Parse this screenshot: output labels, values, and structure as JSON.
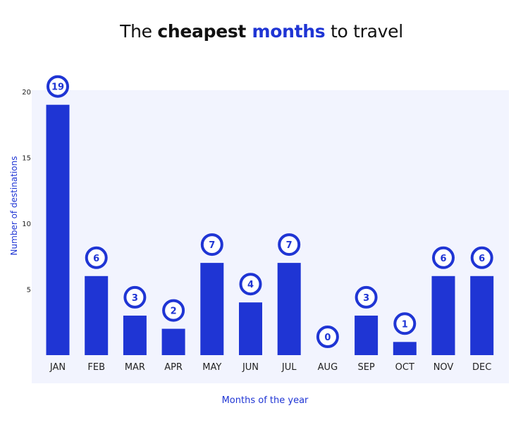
{
  "title": {
    "part1": "The ",
    "part2": "cheapest ",
    "part3": "months",
    "part4": " to travel"
  },
  "colors": {
    "accent": "#1f35d4",
    "plot_bg": "#f2f4fe",
    "title_text": "#111111",
    "tick_text": "#222222",
    "label_text": "#1f35d4",
    "badge_fill": "#ffffff"
  },
  "chart_data": {
    "type": "bar",
    "title": "The cheapest months to travel",
    "xlabel": "Months of the year",
    "ylabel": "Number of destinations",
    "categories": [
      "JAN",
      "FEB",
      "MAR",
      "APR",
      "MAY",
      "JUN",
      "JUL",
      "AUG",
      "SEP",
      "OCT",
      "NOV",
      "DEC"
    ],
    "values": [
      19,
      6,
      3,
      2,
      7,
      4,
      7,
      0,
      3,
      1,
      6,
      6
    ],
    "yticks": [
      5,
      10,
      15,
      20
    ],
    "ylim": [
      0,
      20
    ],
    "grid": false,
    "data_labels": "circle badges above bars"
  }
}
